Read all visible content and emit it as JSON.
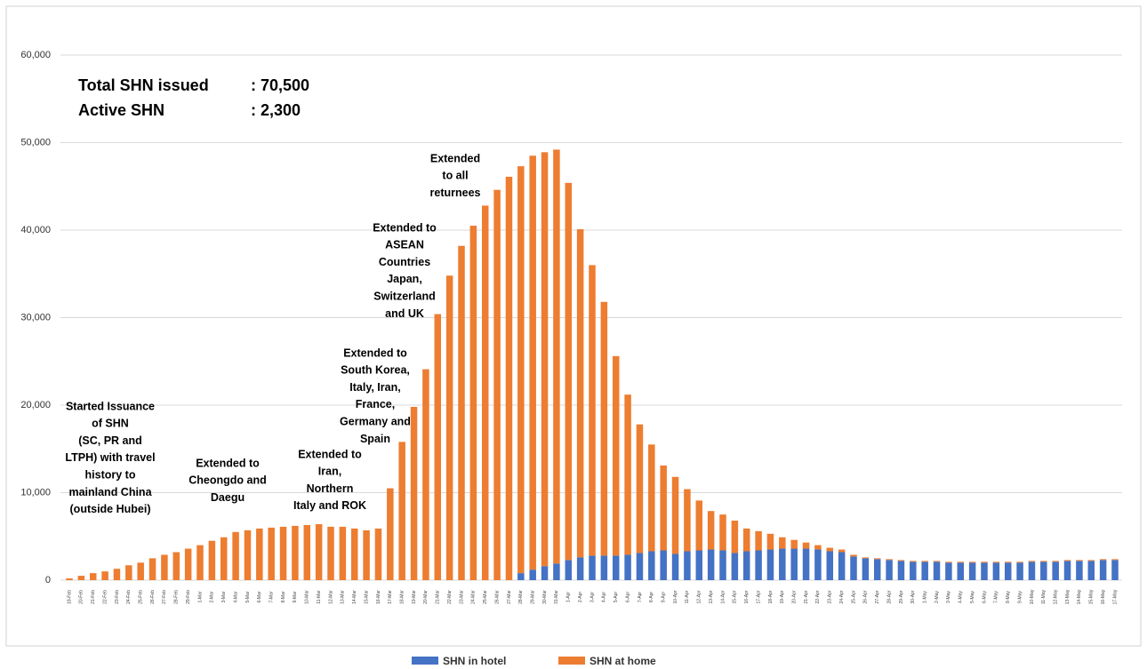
{
  "chart_data": {
    "type": "stacked_bar",
    "categories": [
      "19-Feb",
      "20-Feb",
      "21-Feb",
      "22-Feb",
      "23-Feb",
      "24-Feb",
      "25-Feb",
      "26-Feb",
      "27-Feb",
      "28-Feb",
      "29-Feb",
      "1-Mar",
      "2-Mar",
      "3-Mar",
      "4-Mar",
      "5-Mar",
      "6-Mar",
      "7-Mar",
      "8-Mar",
      "9-Mar",
      "10-Mar",
      "11-Mar",
      "12-Mar",
      "13-Mar",
      "14-Mar",
      "15-Mar",
      "16-Mar",
      "17-Mar",
      "18-Mar",
      "19-Mar",
      "20-Mar",
      "21-Mar",
      "22-Mar",
      "23-Mar",
      "24-Mar",
      "25-Mar",
      "26-Mar",
      "27-Mar",
      "28-Mar",
      "29-Mar",
      "30-Mar",
      "31-Mar",
      "1-Apr",
      "2-Apr",
      "3-Apr",
      "4-Apr",
      "5-Apr",
      "6-Apr",
      "7-Apr",
      "8-Apr",
      "9-Apr",
      "10-Apr",
      "11-Apr",
      "12-Apr",
      "13-Apr",
      "14-Apr",
      "15-Apr",
      "16-Apr",
      "17-Apr",
      "18-Apr",
      "19-Apr",
      "20-Apr",
      "21-Apr",
      "22-Apr",
      "23-Apr",
      "24-Apr",
      "25-Apr",
      "26-Apr",
      "27-Apr",
      "28-Apr",
      "29-Apr",
      "30-Apr",
      "1-May",
      "2-May",
      "3-May",
      "4-May",
      "5-May",
      "6-May",
      "7-May",
      "8-May",
      "9-May",
      "10-May",
      "11-May",
      "12-May",
      "13-May",
      "14-May",
      "15-May",
      "16-May",
      "17-May"
    ],
    "series": [
      {
        "name": "SHN in hotel",
        "color": "#4472c4",
        "values": [
          null,
          null,
          null,
          null,
          null,
          null,
          null,
          null,
          null,
          null,
          null,
          null,
          null,
          null,
          null,
          null,
          null,
          null,
          null,
          null,
          null,
          null,
          null,
          null,
          null,
          null,
          null,
          null,
          null,
          null,
          null,
          null,
          null,
          null,
          null,
          null,
          null,
          null,
          800,
          1200,
          1600,
          1900,
          2300,
          2600,
          2800,
          2800,
          2800,
          2900,
          3100,
          3300,
          3400,
          3000,
          3300,
          3400,
          3500,
          3400,
          3100,
          3300,
          3400,
          3500,
          3600,
          3600,
          3600,
          3500,
          3300,
          3200,
          2700,
          2500,
          2400,
          2300,
          2200,
          2100,
          2100,
          2100,
          2000,
          2000,
          2000,
          2000,
          2000,
          2000,
          2000,
          2100,
          2100,
          2100,
          2200,
          2200,
          2200,
          2300,
          2300
        ]
      },
      {
        "name": "SHN at home",
        "color": "#ed7d31",
        "values": [
          200,
          500,
          800,
          1000,
          1300,
          1700,
          2000,
          2500,
          2900,
          3200,
          3600,
          4000,
          4500,
          4900,
          5500,
          5700,
          5900,
          6000,
          6100,
          6200,
          6300,
          6400,
          6100,
          6100,
          5900,
          5700,
          5900,
          10500,
          15800,
          19800,
          24100,
          30400,
          34800,
          38200,
          40500,
          42800,
          44600,
          46100,
          46500,
          47300,
          47300,
          47300,
          43100,
          37500,
          33200,
          29000,
          22800,
          18300,
          14700,
          12200,
          9700,
          8800,
          7100,
          5700,
          4400,
          4100,
          3700,
          2600,
          2200,
          1800,
          1300,
          1000,
          700,
          500,
          400,
          300,
          200,
          100,
          100,
          100,
          100,
          100,
          100,
          100,
          100,
          100,
          100,
          100,
          100,
          100,
          100,
          100,
          100,
          100,
          100,
          100,
          100,
          100,
          100
        ]
      }
    ],
    "ylim": [
      0,
      60000
    ],
    "yticks": [
      0,
      {
        "value": 10000,
        "label": "10,000"
      },
      {
        "value": 20000,
        "label": "20,000"
      },
      {
        "value": 30000,
        "label": "30,000"
      },
      {
        "value": 40000,
        "label": "40,000"
      },
      {
        "value": 50000,
        "label": "50,000"
      },
      {
        "value": 60000,
        "label": "60,000"
      }
    ],
    "grid": true,
    "legend": "bottom",
    "stats": [
      {
        "label": "Total SHN issued",
        "value": ": 70,500"
      },
      {
        "label": "Active SHN",
        "value": ": 2,300"
      }
    ],
    "annotations": [
      [
        "Started Issuance",
        "of SHN",
        "(SC, PR and",
        "LTPH) with travel",
        "history to",
        "mainland China",
        "(outside Hubei)"
      ],
      [
        "Extended to",
        "Cheongdo and",
        "Daegu"
      ],
      [
        "Extended to",
        "Iran,",
        "Northern",
        "Italy and ROK"
      ],
      [
        "Extended to",
        "South Korea,",
        "Italy, Iran,",
        "France,",
        "Germany and",
        "Spain"
      ],
      [
        "Extended to",
        "ASEAN",
        "Countries",
        "Japan,",
        "Switzerland",
        "and UK"
      ],
      [
        "Extended",
        "to all",
        "returnees"
      ]
    ]
  }
}
